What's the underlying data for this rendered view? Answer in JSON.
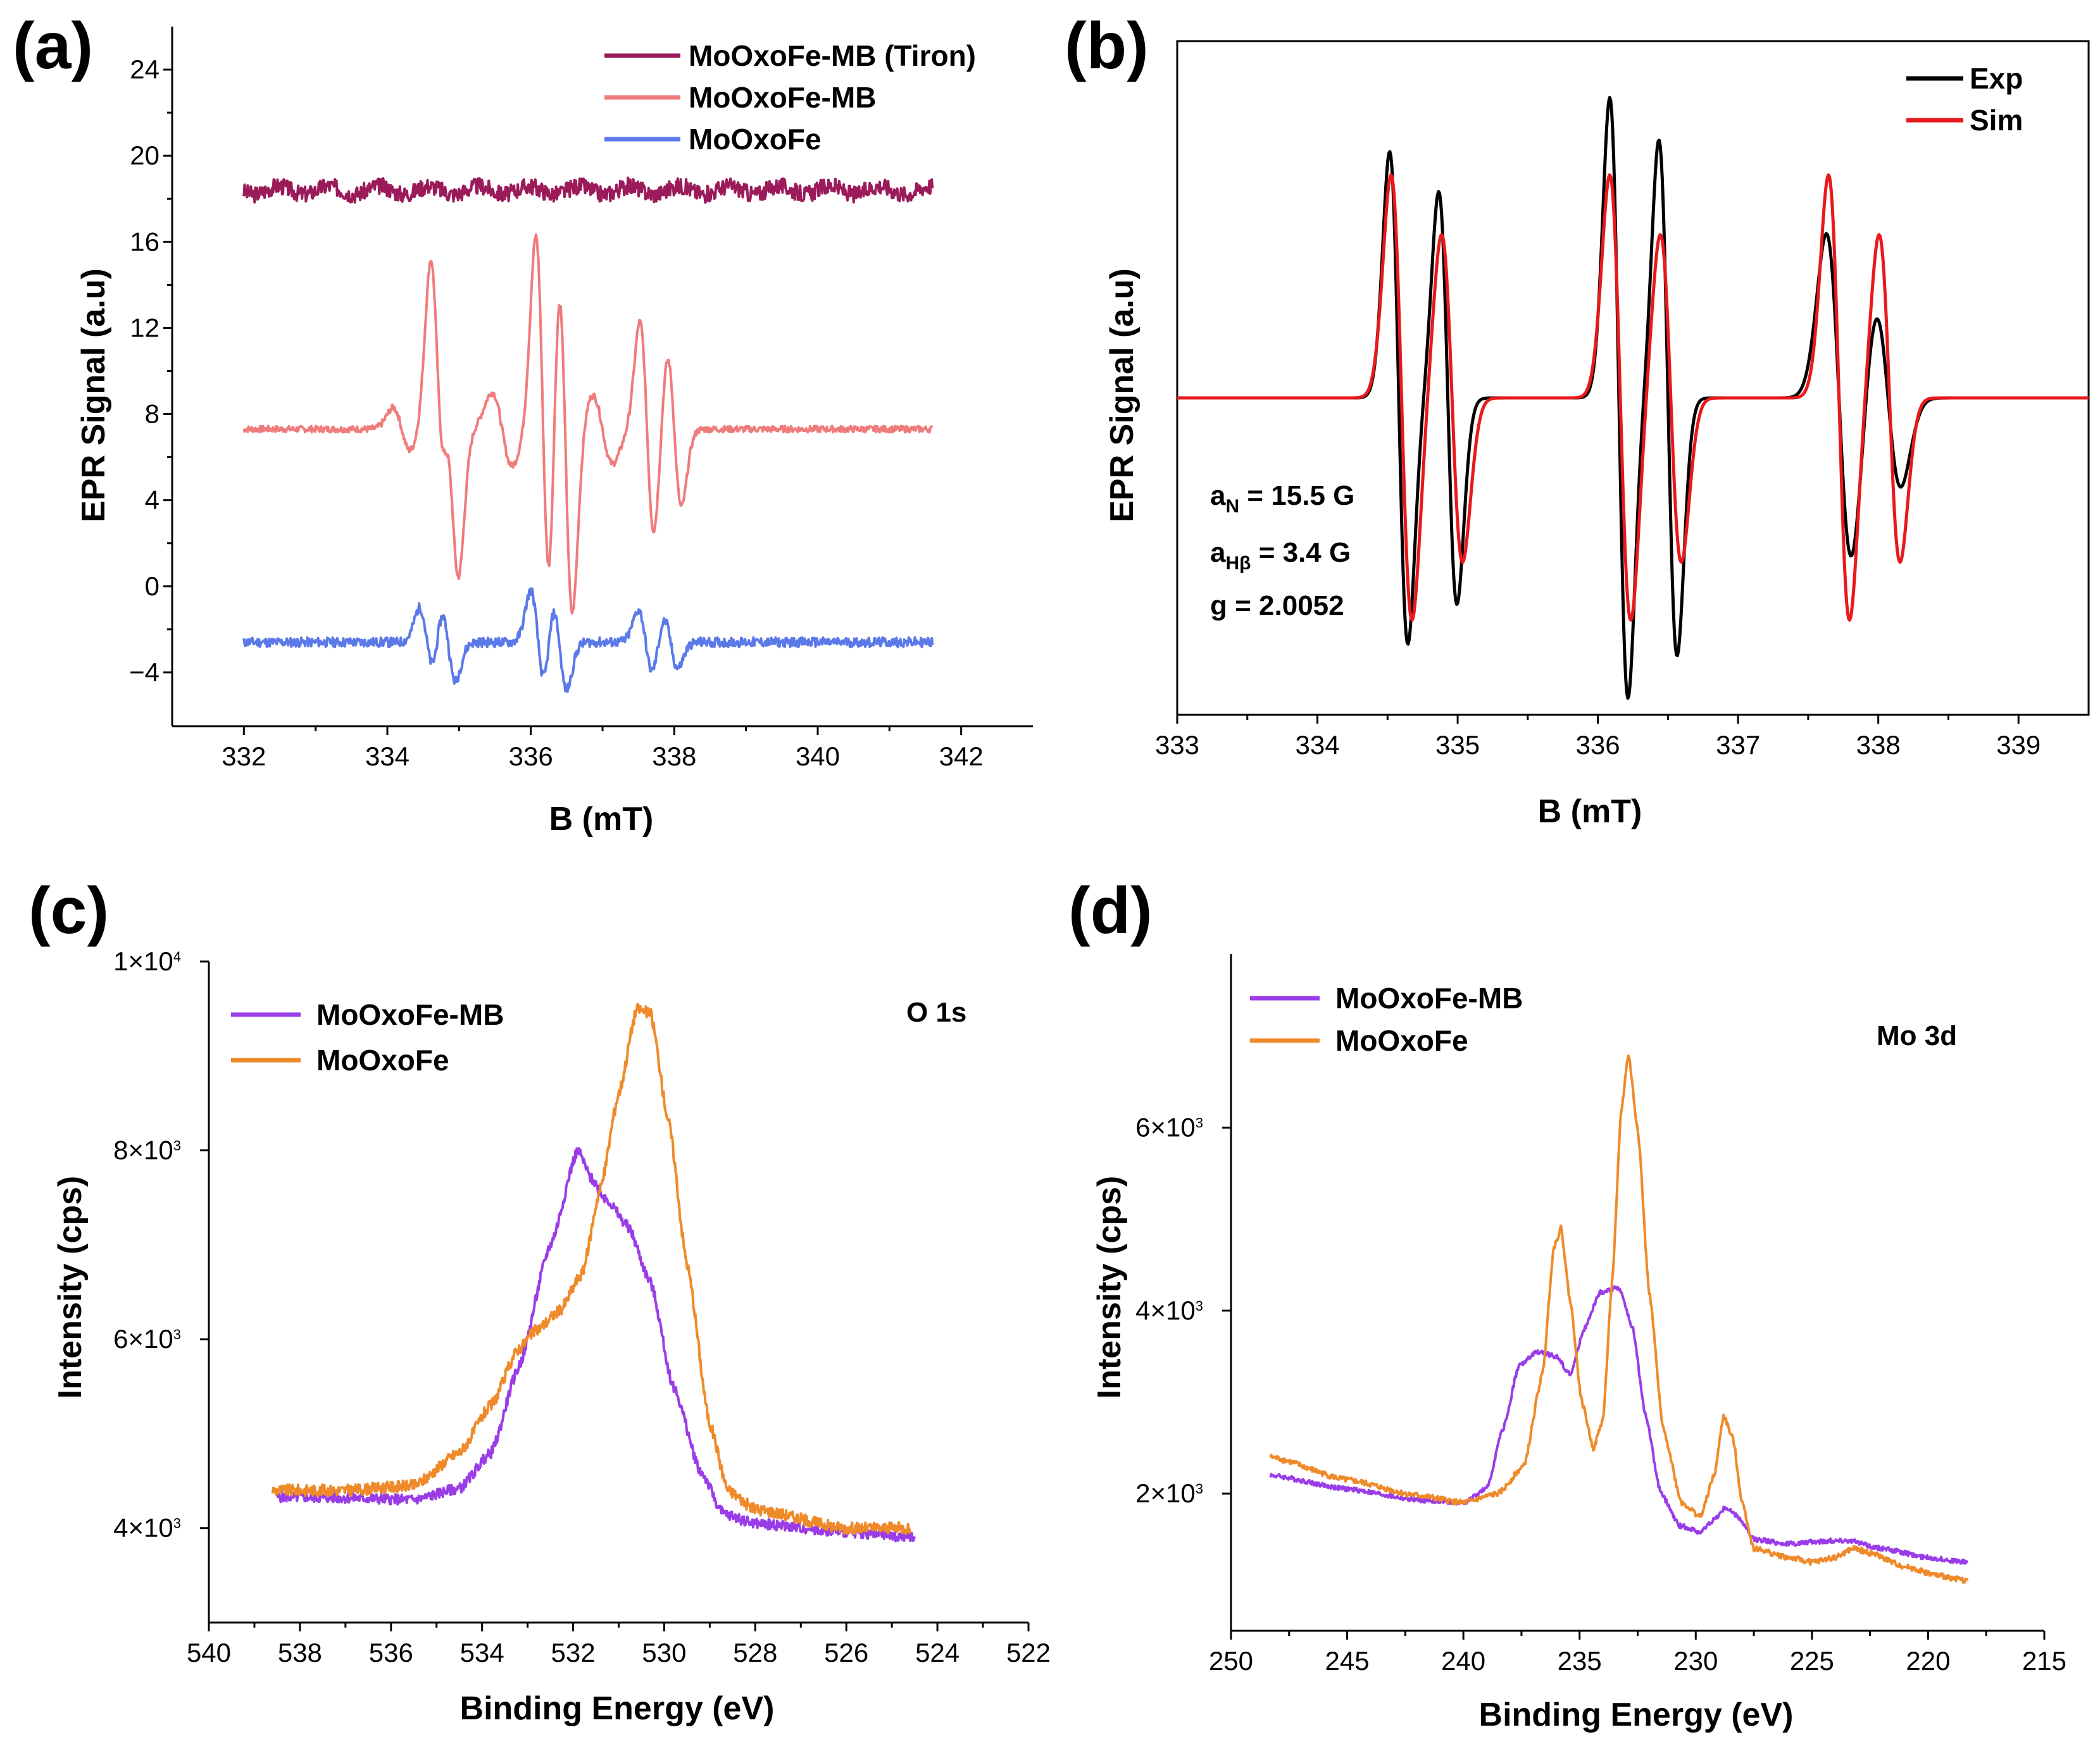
{
  "chart_data": [
    {
      "id": "a",
      "panel_label": "(a)",
      "type": "line",
      "xlabel": "B (mT)",
      "ylabel": "EPR Signal (a.u)",
      "xlim": [
        331,
        343
      ],
      "ylim": [
        -6.5,
        26
      ],
      "xticks": [
        332,
        334,
        336,
        338,
        340,
        342
      ],
      "yticks": [
        -4,
        0,
        4,
        8,
        12,
        16,
        20,
        24
      ],
      "ytick_labels": [
        "−4",
        "0",
        "4",
        "8",
        "12",
        "16",
        "20",
        "24"
      ],
      "legend_position": "top-right",
      "series": [
        {
          "name": "MoOxoFe-MB (Tiron)",
          "color": "#9b1b5a",
          "kind": "noise",
          "baseline": 18.4,
          "noise": 0.55,
          "x_range": [
            332,
            341.6
          ],
          "seed": 3
        },
        {
          "name": "MoOxoFe-MB",
          "color": "#f07b7b",
          "kind": "epr",
          "baseline": 7.3,
          "noise": 0.15,
          "x_range": [
            332,
            341.6
          ],
          "seed": 7,
          "lines": [
            {
              "center": 334.7,
              "amp": 7.5,
              "width": 0.1
            },
            {
              "center": 334.9,
              "amp": 6.4,
              "width": 0.1
            },
            {
              "center": 336.17,
              "amp": 9.0,
              "width": 0.1
            },
            {
              "center": 336.48,
              "amp": 8.6,
              "width": 0.1
            },
            {
              "center": 337.62,
              "amp": 5.0,
              "width": 0.1
            },
            {
              "center": 338.0,
              "amp": 3.6,
              "width": 0.1
            },
            {
              "center": 334.2,
              "amp": 1.0,
              "width": 0.12
            },
            {
              "center": 335.6,
              "amp": 1.7,
              "width": 0.14
            },
            {
              "center": 337.0,
              "amp": 1.6,
              "width": 0.14
            }
          ]
        },
        {
          "name": "MoOxoFe",
          "color": "#5b79e8",
          "kind": "epr",
          "baseline": -2.6,
          "noise": 0.22,
          "x_range": [
            332,
            341.6
          ],
          "seed": 11,
          "lines": [
            {
              "center": 334.55,
              "amp": 1.6,
              "width": 0.1
            },
            {
              "center": 334.85,
              "amp": 1.8,
              "width": 0.1
            },
            {
              "center": 336.1,
              "amp": 2.4,
              "width": 0.1
            },
            {
              "center": 336.4,
              "amp": 2.2,
              "width": 0.1
            },
            {
              "center": 337.6,
              "amp": 1.5,
              "width": 0.1
            },
            {
              "center": 337.95,
              "amp": 1.2,
              "width": 0.1
            }
          ]
        }
      ]
    },
    {
      "id": "b",
      "panel_label": "(b)",
      "type": "line",
      "xlabel": "B (mT)",
      "ylabel": "EPR Signal (a.u)",
      "xlim": [
        333,
        339.5
      ],
      "ylim": [
        -1.35,
        1.52
      ],
      "xticks": [
        333,
        334,
        335,
        336,
        337,
        338,
        339
      ],
      "yticks": [],
      "legend_position": "top-right",
      "annotations": {
        "aN": "a",
        "aN_sub": "N",
        "aN_value": " = 15.5 G",
        "aH": "a",
        "aH_sub": "Hβ",
        "aH_value": " = 3.4 G",
        "g": "g = 2.0052"
      },
      "series": [
        {
          "name": "Exp",
          "color": "#000000",
          "kind": "gauss",
          "x_range": [
            333,
            339.5
          ],
          "lines": [
            {
              "center": 334.58,
              "amp": 1.05,
              "width": 0.065
            },
            {
              "center": 334.93,
              "amp": 0.88,
              "width": 0.065
            },
            {
              "center": 336.15,
              "amp": 1.28,
              "width": 0.065
            },
            {
              "center": 336.5,
              "amp": 1.1,
              "width": 0.065
            },
            {
              "center": 337.72,
              "amp": 0.7,
              "width": 0.09
            },
            {
              "center": 338.07,
              "amp": 0.38,
              "width": 0.09
            }
          ]
        },
        {
          "name": "Sim",
          "color": "#e8191c",
          "kind": "gauss",
          "x_range": [
            333,
            339.5
          ],
          "lines": [
            {
              "center": 334.6,
              "amp": 0.95,
              "width": 0.075
            },
            {
              "center": 334.96,
              "amp": 0.7,
              "width": 0.075
            },
            {
              "center": 336.16,
              "amp": 0.95,
              "width": 0.075
            },
            {
              "center": 336.52,
              "amp": 0.7,
              "width": 0.075
            },
            {
              "center": 337.72,
              "amp": 0.95,
              "width": 0.075
            },
            {
              "center": 338.08,
              "amp": 0.7,
              "width": 0.075
            }
          ]
        }
      ]
    },
    {
      "id": "c",
      "panel_label": "(c)",
      "type": "line",
      "xlabel": "Binding Energy (eV)",
      "ylabel": "Intensity (cps)",
      "xlim": [
        540,
        522
      ],
      "ylim": [
        3000,
        10000
      ],
      "xticks": [
        540,
        538,
        536,
        534,
        532,
        530,
        528,
        526,
        524,
        522
      ],
      "yticks": [
        4000,
        6000,
        8000,
        10000
      ],
      "ytick_labels": [
        "4×10",
        "6×10",
        "8×10",
        "1×10"
      ],
      "ytick_exp": "3",
      "ytick_top_exp": "4",
      "legend_position": "top-left",
      "annotation": "O 1s",
      "series": [
        {
          "name": "MoOxoFe-MB",
          "color": "#9a3de8",
          "kind": "xps",
          "x_range": [
            538.5,
            524.5
          ],
          "noise": 55,
          "seed": 5,
          "points": [
            [
              538.5,
              4330
            ],
            [
              537,
              4320
            ],
            [
              535.5,
              4300
            ],
            [
              534.5,
              4420
            ],
            [
              533.8,
              4800
            ],
            [
              533.2,
              5700
            ],
            [
              532.5,
              7000
            ],
            [
              531.9,
              8000
            ],
            [
              531.6,
              7700
            ],
            [
              531.3,
              7500
            ],
            [
              530.8,
              7200
            ],
            [
              530.3,
              6600
            ],
            [
              529.8,
              5500
            ],
            [
              529.2,
              4600
            ],
            [
              528.7,
              4150
            ],
            [
              528,
              4050
            ],
            [
              526,
              3960
            ],
            [
              524.5,
              3900
            ]
          ]
        },
        {
          "name": "MoOxoFe",
          "color": "#ef8a2a",
          "kind": "xps",
          "x_range": [
            538.6,
            524.6
          ],
          "noise": 60,
          "seed": 9,
          "points": [
            [
              538.6,
              4400
            ],
            [
              537,
              4400
            ],
            [
              535.5,
              4450
            ],
            [
              534.5,
              4800
            ],
            [
              533.8,
              5300
            ],
            [
              533.2,
              5900
            ],
            [
              532.8,
              6100
            ],
            [
              532.3,
              6300
            ],
            [
              531.8,
              6700
            ],
            [
              531.4,
              7600
            ],
            [
              531,
              8600
            ],
            [
              530.6,
              9500
            ],
            [
              530.3,
              9450
            ],
            [
              529.9,
              8300
            ],
            [
              529.5,
              6800
            ],
            [
              529,
              5100
            ],
            [
              528.6,
              4400
            ],
            [
              528,
              4200
            ],
            [
              526,
              4000
            ],
            [
              524.6,
              4000
            ]
          ]
        }
      ]
    },
    {
      "id": "d",
      "panel_label": "(d)",
      "type": "line",
      "xlabel": "Binding Energy (eV)",
      "ylabel": "Intensity (cps)",
      "xlim": [
        250,
        215
      ],
      "ylim": [
        500,
        7900
      ],
      "xticks": [
        250,
        245,
        240,
        235,
        230,
        225,
        220,
        215
      ],
      "yticks": [
        2000,
        4000,
        6000
      ],
      "ytick_labels": [
        "2×10",
        "4×10",
        "6×10"
      ],
      "ytick_exp": "3",
      "legend_position": "top-left",
      "annotation": "Mo 3d",
      "series": [
        {
          "name": "MoOxoFe-MB",
          "color": "#9a3de8",
          "kind": "xps",
          "x_range": [
            248.3,
            218.3
          ],
          "noise": 25,
          "seed": 4,
          "points": [
            [
              248.3,
              2200
            ],
            [
              245,
              2050
            ],
            [
              242,
              1930
            ],
            [
              240,
              1900
            ],
            [
              239,
              2050
            ],
            [
              238.3,
              2700
            ],
            [
              237.6,
              3400
            ],
            [
              236.8,
              3550
            ],
            [
              236,
              3500
            ],
            [
              235.4,
              3300
            ],
            [
              234.8,
              3800
            ],
            [
              234.1,
              4200
            ],
            [
              233.3,
              4250
            ],
            [
              232.7,
              3800
            ],
            [
              232.2,
              2900
            ],
            [
              231.5,
              2000
            ],
            [
              230.7,
              1650
            ],
            [
              229.8,
              1580
            ],
            [
              229.2,
              1720
            ],
            [
              228.7,
              1850
            ],
            [
              228.2,
              1750
            ],
            [
              227.5,
              1500
            ],
            [
              226,
              1450
            ],
            [
              224.5,
              1480
            ],
            [
              223.5,
              1490
            ],
            [
              222,
              1400
            ],
            [
              220,
              1300
            ],
            [
              218.3,
              1250
            ]
          ]
        },
        {
          "name": "MoOxoFe",
          "color": "#ef8a2a",
          "kind": "xps",
          "x_range": [
            248.3,
            218.3
          ],
          "noise": 30,
          "seed": 8,
          "points": [
            [
              248.3,
              2400
            ],
            [
              245,
              2150
            ],
            [
              242,
              1980
            ],
            [
              240,
              1900
            ],
            [
              238.5,
              2000
            ],
            [
              237.4,
              2300
            ],
            [
              236.6,
              3300
            ],
            [
              236.1,
              4700
            ],
            [
              235.8,
              4900
            ],
            [
              235.4,
              4100
            ],
            [
              234.9,
              3000
            ],
            [
              234.4,
              2500
            ],
            [
              234,
              2800
            ],
            [
              233.6,
              4300
            ],
            [
              233.2,
              6200
            ],
            [
              232.9,
              6800
            ],
            [
              232.5,
              6000
            ],
            [
              232,
              4200
            ],
            [
              231.4,
              2700
            ],
            [
              230.6,
              1900
            ],
            [
              229.8,
              1750
            ],
            [
              229.2,
              2200
            ],
            [
              228.8,
              2850
            ],
            [
              228.4,
              2600
            ],
            [
              228,
              1900
            ],
            [
              227.5,
              1400
            ],
            [
              226,
              1300
            ],
            [
              225,
              1250
            ],
            [
              224,
              1300
            ],
            [
              223.2,
              1400
            ],
            [
              222.5,
              1350
            ],
            [
              221,
              1200
            ],
            [
              219.5,
              1100
            ],
            [
              218.3,
              1050
            ]
          ]
        }
      ]
    }
  ]
}
